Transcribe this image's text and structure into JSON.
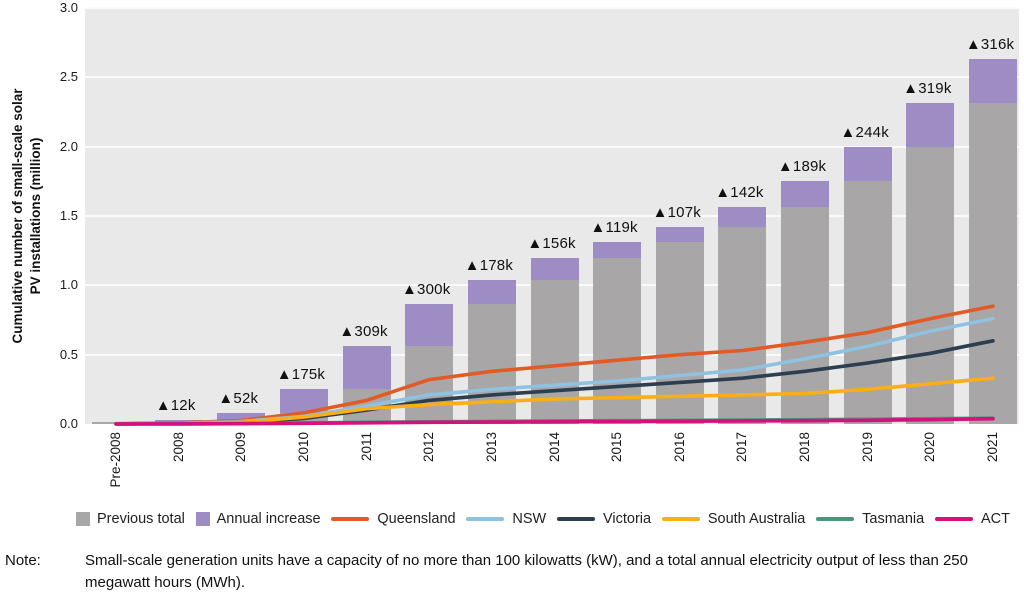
{
  "chart_data": {
    "type": "bar",
    "subtype": "stacked_bars_with_line_overlay",
    "title": "",
    "ylabel": "Cumulative number of small-scale solar PV installations (million)",
    "ylabel_lines": [
      "Cumulative number of small-scale solar",
      "PV installations (million)"
    ],
    "xlabel": "",
    "ylim": [
      0,
      3.0
    ],
    "yticks": [
      "0.0",
      "0.5",
      "1.0",
      "1.5",
      "2.0",
      "2.5",
      "3.0"
    ],
    "grid": true,
    "legend_position": "bottom",
    "plot_bg_color": "#e9e9e9",
    "grid_color": "#fafafa",
    "categories": [
      "Pre-2008",
      "2008",
      "2009",
      "2010",
      "2011",
      "2012",
      "2013",
      "2014",
      "2015",
      "2016",
      "2017",
      "2018",
      "2019",
      "2020",
      "2021"
    ],
    "bar_series": [
      {
        "name": "Previous total",
        "color": "#a8a6a7",
        "values": [
          0.014,
          0.014,
          0.026,
          0.078,
          0.253,
          0.562,
          0.862,
          1.04,
          1.196,
          1.315,
          1.422,
          1.564,
          1.753,
          1.997,
          2.316
        ]
      },
      {
        "name": "Annual increase",
        "color": "#9e8dc4",
        "values": [
          0.0,
          0.012,
          0.052,
          0.175,
          0.309,
          0.3,
          0.178,
          0.156,
          0.119,
          0.107,
          0.142,
          0.189,
          0.244,
          0.319,
          0.316
        ]
      }
    ],
    "bar_annotations": [
      "",
      "▲12k",
      "▲52k",
      "▲175k",
      "▲309k",
      "▲300k",
      "▲178k",
      "▲156k",
      "▲119k",
      "▲107k",
      "▲142k",
      "▲189k",
      "▲244k",
      "▲319k",
      "▲316k"
    ],
    "line_series": [
      {
        "name": "Queensland",
        "color": "#e25b27",
        "values": [
          0.002,
          0.008,
          0.025,
          0.08,
          0.17,
          0.32,
          0.38,
          0.42,
          0.46,
          0.5,
          0.53,
          0.59,
          0.66,
          0.76,
          0.85
        ]
      },
      {
        "name": "NSW",
        "color": "#8fc1e1",
        "values": [
          0.001,
          0.005,
          0.018,
          0.055,
          0.13,
          0.21,
          0.25,
          0.28,
          0.31,
          0.35,
          0.39,
          0.47,
          0.56,
          0.67,
          0.76
        ]
      },
      {
        "name": "Victoria",
        "color": "#2c3e50",
        "values": [
          0.001,
          0.004,
          0.012,
          0.04,
          0.1,
          0.17,
          0.21,
          0.24,
          0.27,
          0.3,
          0.33,
          0.38,
          0.44,
          0.51,
          0.6
        ]
      },
      {
        "name": "South Australia",
        "color": "#fbae17",
        "values": [
          0.001,
          0.003,
          0.012,
          0.05,
          0.11,
          0.14,
          0.16,
          0.18,
          0.19,
          0.2,
          0.21,
          0.22,
          0.25,
          0.29,
          0.33
        ]
      },
      {
        "name": "Tasmania",
        "color": "#4f9579",
        "values": [
          0.001,
          0.001,
          0.003,
          0.007,
          0.012,
          0.016,
          0.019,
          0.022,
          0.024,
          0.026,
          0.028,
          0.031,
          0.034,
          0.038,
          0.042
        ]
      },
      {
        "name": "ACT",
        "color": "#d4117d",
        "values": [
          0.001,
          0.001,
          0.002,
          0.005,
          0.009,
          0.012,
          0.014,
          0.016,
          0.018,
          0.02,
          0.022,
          0.024,
          0.027,
          0.031,
          0.038
        ]
      }
    ]
  },
  "note": {
    "label": "Note:",
    "text": "Small-scale generation units have a capacity of no more than 100 kilowatts (kW), and a total annual electricity output of less than 250 megawatt hours (MWh)."
  }
}
